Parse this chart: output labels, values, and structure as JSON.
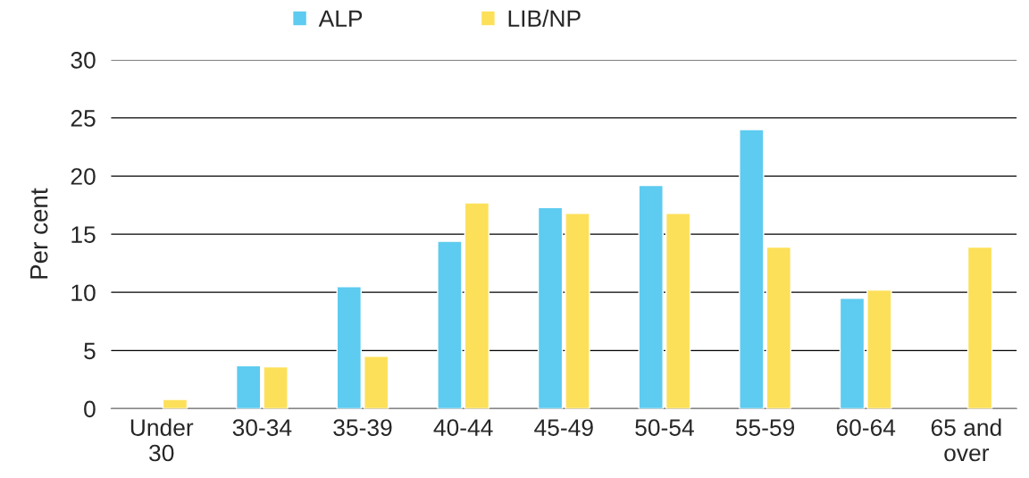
{
  "chart_data": {
    "type": "bar",
    "ylabel": "Per cent",
    "categories": [
      "Under\n30",
      "30-34",
      "35-39",
      "40-44",
      "45-49",
      "50-54",
      "55-59",
      "60-64",
      "65 and\nover"
    ],
    "series": [
      {
        "name": "ALP",
        "color": "#5ecbf0",
        "values": [
          null,
          3.7,
          10.5,
          14.4,
          17.3,
          19.2,
          24.0,
          9.5,
          null
        ]
      },
      {
        "name": "LIB/NP",
        "color": "#fde05a",
        "values": [
          0.8,
          3.6,
          4.5,
          17.7,
          16.8,
          16.8,
          13.9,
          10.2,
          13.9
        ]
      }
    ],
    "ylim": [
      0,
      30
    ],
    "yticks": [
      0,
      5,
      10,
      15,
      20,
      25,
      30
    ],
    "grid": "y",
    "legend": "top"
  }
}
